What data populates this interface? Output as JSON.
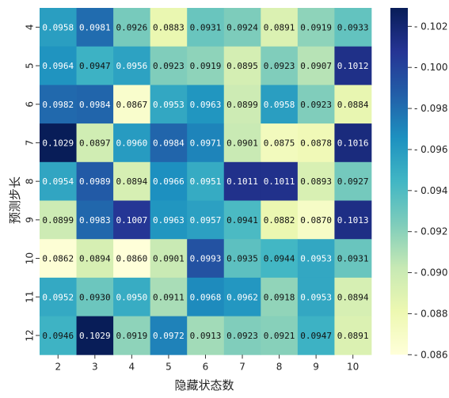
{
  "chart_data": {
    "type": "heatmap",
    "xlabel": "隐藏状态数",
    "ylabel": "预测步长",
    "x_categories": [
      "2",
      "3",
      "4",
      "5",
      "6",
      "7",
      "8",
      "9",
      "10"
    ],
    "y_categories": [
      "4",
      "5",
      "6",
      "7",
      "8",
      "9",
      "10",
      "11",
      "12"
    ],
    "values": [
      [
        0.0958,
        0.0981,
        0.0926,
        0.0883,
        0.0931,
        0.0924,
        0.0891,
        0.0919,
        0.0933
      ],
      [
        0.0964,
        0.0947,
        0.0956,
        0.0923,
        0.0919,
        0.0895,
        0.0923,
        0.0907,
        0.1012
      ],
      [
        0.0982,
        0.0984,
        0.0867,
        0.0953,
        0.0963,
        0.0899,
        0.0958,
        0.0923,
        0.0884
      ],
      [
        0.1029,
        0.0897,
        0.096,
        0.0984,
        0.0971,
        0.0901,
        0.0875,
        0.0878,
        0.1016
      ],
      [
        0.0954,
        0.0989,
        0.0894,
        0.0966,
        0.0951,
        0.1011,
        0.1011,
        0.0893,
        0.0927
      ],
      [
        0.0899,
        0.0983,
        0.1007,
        0.0963,
        0.0957,
        0.0941,
        0.0882,
        0.087,
        0.1013
      ],
      [
        0.0862,
        0.0894,
        0.086,
        0.0901,
        0.0993,
        0.0935,
        0.0944,
        0.0953,
        0.0931
      ],
      [
        0.0952,
        0.093,
        0.095,
        0.0911,
        0.0968,
        0.0962,
        0.0918,
        0.0953,
        0.0894
      ],
      [
        0.0946,
        0.1029,
        0.0919,
        0.0972,
        0.0913,
        0.0923,
        0.0921,
        0.0947,
        0.0891
      ]
    ],
    "colorbar": {
      "min": 0.086,
      "max": 0.1029,
      "ticks": [
        "0.086",
        "0.088",
        "0.090",
        "0.092",
        "0.094",
        "0.096",
        "0.098",
        "0.100",
        "0.102"
      ],
      "colormap": "YlGnBu",
      "colormap_stops": [
        "#ffffd9",
        "#edf8b1",
        "#c7e9b4",
        "#7fcdbb",
        "#41b6c4",
        "#1d91c0",
        "#225ea8",
        "#253494",
        "#081d58"
      ]
    }
  }
}
